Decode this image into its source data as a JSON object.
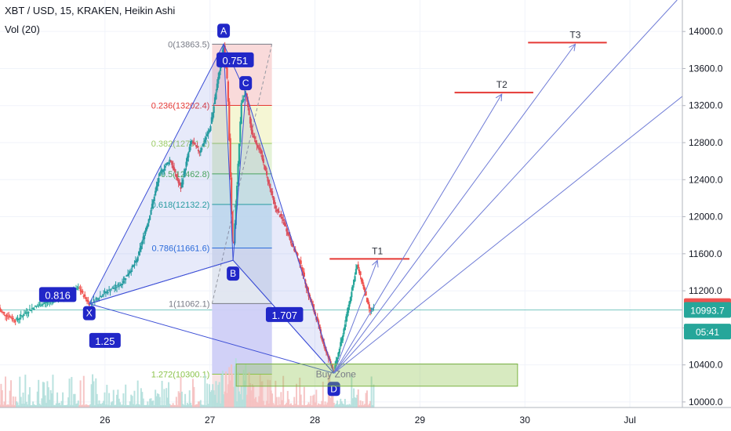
{
  "header": {
    "symbol_line": "XBT / USD, 15, KRAKEN, Heikin Ashi",
    "volume_line": "Vol (20)"
  },
  "chart_data": {
    "type": "candlestick",
    "yaxis": {
      "ticks": [
        10000,
        10400,
        10800,
        11200,
        11600,
        12000,
        12400,
        12800,
        13200,
        13600,
        14000
      ],
      "tick_labels": [
        "10000.0",
        "10400.0",
        "10800.0",
        "11200.0",
        "11600.0",
        "12000.0",
        "12400.0",
        "12800.0",
        "13200.0",
        "13600.0",
        "14000.0"
      ],
      "range": [
        9940,
        14340
      ]
    },
    "xaxis": {
      "range": [
        25.0,
        31.5
      ],
      "ticks": [
        26,
        27,
        28,
        29,
        30,
        31
      ],
      "tick_labels": [
        "26",
        "27",
        "28",
        "29",
        "30",
        "Jul"
      ]
    },
    "price_labels": [
      {
        "text": "11035.0",
        "value": 11035,
        "color": "#ef5350"
      },
      {
        "text": "10993.7",
        "value": 10993.7,
        "color": "#26a69a"
      },
      {
        "text": "05:41",
        "value": 10760,
        "color": "#26a69a"
      }
    ],
    "fib_levels": [
      {
        "label": "0(13863.5)",
        "value": 13863.5,
        "color": "#787b86",
        "fill": "#f8d4d4"
      },
      {
        "label": "0.236(13202.4)",
        "value": 13202.4,
        "color": "#e53935",
        "fill": "#f3f5cc"
      },
      {
        "label": "0.382(12791.1)",
        "value": 12791.1,
        "color": "#9ccc65",
        "fill": "#dff0d0"
      },
      {
        "label": "0.5(12462.8)",
        "value": 12462.8,
        "color": "#4caf50",
        "fill": "#d3eee0"
      },
      {
        "label": "0.618(12132.2)",
        "value": 12132.2,
        "color": "#26a69a",
        "fill": "#cde8f0"
      },
      {
        "label": "0.786(11661.6)",
        "value": 11661.6,
        "color": "#2a6fdb",
        "fill": "#dde3ee"
      },
      {
        "label": "1(11062.1)",
        "value": 11062.1,
        "color": "#787b86",
        "fill": "#d8d8f8"
      },
      {
        "label": "1.272(10300.1)",
        "value": 10300.1,
        "color": "#8bc34a",
        "fill": null
      }
    ],
    "pattern_points": [
      {
        "name": "X",
        "x": 25.85,
        "y": 11060
      },
      {
        "name": "A",
        "x": 27.13,
        "y": 13864
      },
      {
        "name": "B",
        "x": 27.22,
        "y": 11530
      },
      {
        "name": "C",
        "x": 27.34,
        "y": 13340
      },
      {
        "name": "D",
        "x": 28.18,
        "y": 10310
      }
    ],
    "ratios": [
      {
        "text": "0.816",
        "x": 25.55,
        "y": 11155
      },
      {
        "text": "0.751",
        "x": 27.24,
        "y": 13690
      },
      {
        "text": "1.707",
        "x": 27.71,
        "y": 10940
      },
      {
        "text": "1.25",
        "x": 26.0,
        "y": 10660
      }
    ],
    "targets": [
      {
        "name": "T1",
        "value": 11545,
        "x0": 28.14,
        "x1": 28.9
      },
      {
        "name": "T2",
        "value": 13340,
        "x0": 29.33,
        "x1": 30.08
      },
      {
        "name": "T3",
        "value": 13880,
        "x0": 30.03,
        "x1": 30.78
      }
    ],
    "buy_zone": {
      "label": "Buy Zone",
      "x0": 27.25,
      "x1": 29.93,
      "y0": 10170,
      "y1": 10410
    },
    "price_line": 10993.7,
    "colors": {
      "up": "#26a69a",
      "down": "#ef5350",
      "pattern": "#3d4fd6",
      "target": "#e53935"
    }
  }
}
